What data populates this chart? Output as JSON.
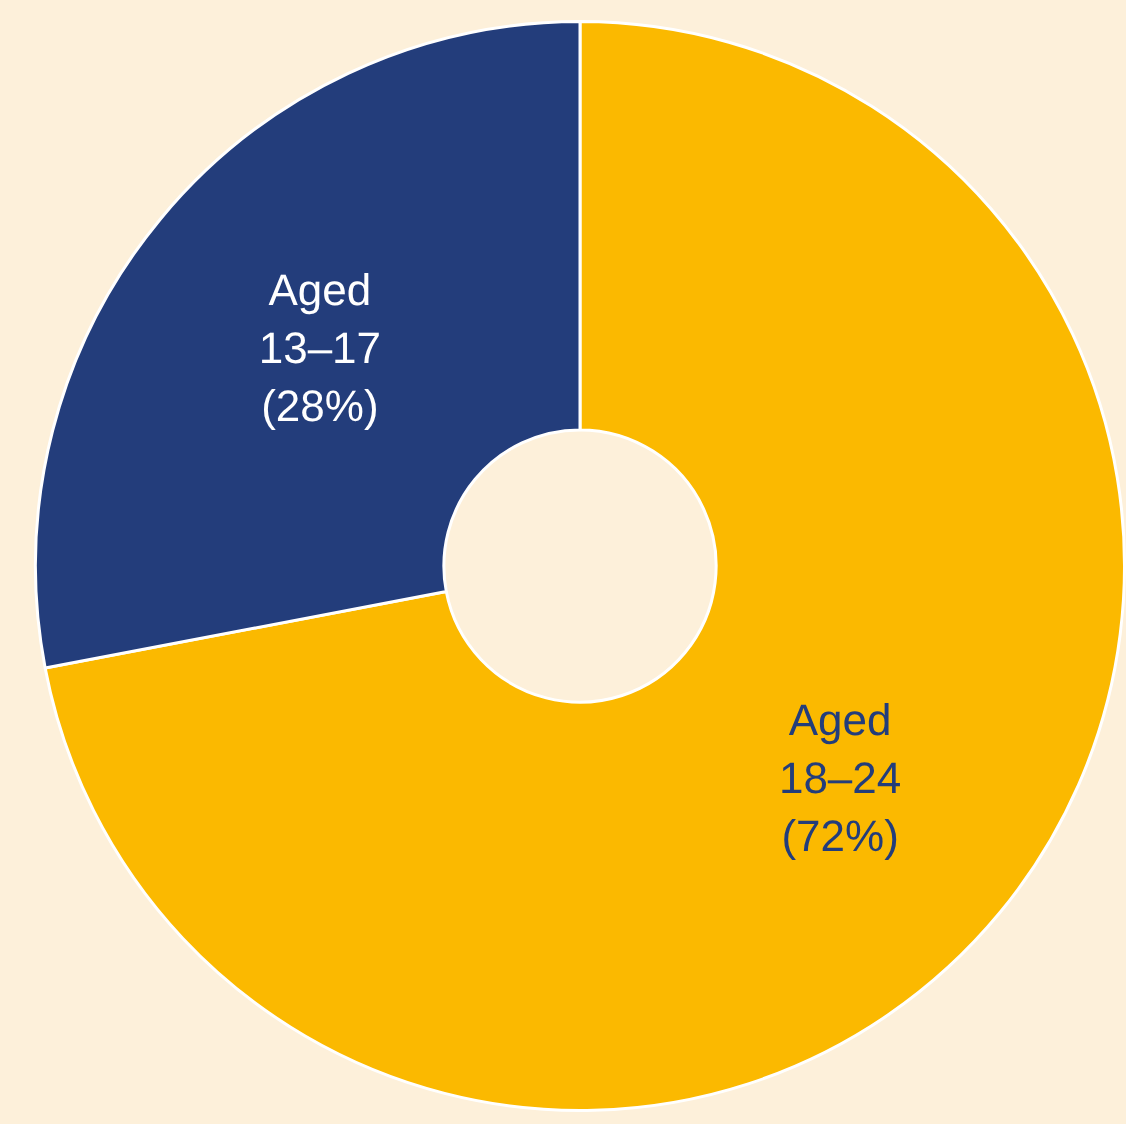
{
  "chart_data": {
    "type": "donut",
    "categories": [
      "Aged 18–24",
      "Aged 13–17"
    ],
    "values": [
      72,
      28
    ],
    "colors": [
      "#fbb900",
      "#233d7b"
    ],
    "value_labels": [
      "(72%)",
      "(28%)"
    ],
    "legend": false
  }
}
